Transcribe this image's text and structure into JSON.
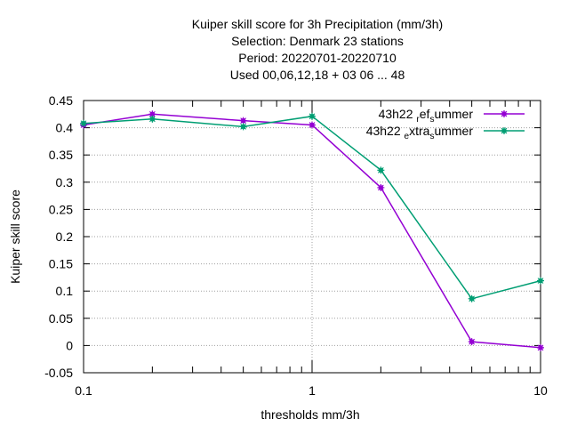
{
  "chart_data": {
    "type": "line",
    "title": [
      "Kuiper skill score  for 3h Precipitation (mm/3h)",
      "Selection: Denmark     23 stations",
      "Period: 20220701-20220710",
      "Used  00,06,12,18  + 03 06 ... 48"
    ],
    "xlabel": "thresholds mm/3h",
    "ylabel": "Kuiper skill score",
    "x_scale": "log",
    "xlim": [
      0.1,
      10
    ],
    "ylim": [
      -0.05,
      0.45
    ],
    "x_ticks": [
      {
        "value": 0.1,
        "label": "0.1"
      },
      {
        "value": 1,
        "label": "1"
      },
      {
        "value": 10,
        "label": "10"
      }
    ],
    "y_ticks": [
      {
        "value": 0.45,
        "label": "0.45"
      },
      {
        "value": 0.4,
        "label": "0.4"
      },
      {
        "value": 0.35,
        "label": "0.35"
      },
      {
        "value": 0.3,
        "label": "0.3"
      },
      {
        "value": 0.25,
        "label": "0.25"
      },
      {
        "value": 0.2,
        "label": "0.2"
      },
      {
        "value": 0.15,
        "label": "0.15"
      },
      {
        "value": 0.1,
        "label": "0.1"
      },
      {
        "value": 0.05,
        "label": "0.05"
      },
      {
        "value": 0,
        "label": "0"
      },
      {
        "value": -0.05,
        "label": "-0.05"
      }
    ],
    "grid": true,
    "legend_position": "top-right",
    "series": [
      {
        "name": "43h22_ref_summer",
        "legend_parts": [
          "43h22 ",
          "r",
          "ef",
          "s",
          "ummer"
        ],
        "color": "#9400d3",
        "x": [
          0.1,
          0.2,
          0.5,
          1,
          2,
          5,
          10
        ],
        "y": [
          0.405,
          0.425,
          0.413,
          0.405,
          0.29,
          0.007,
          -0.004
        ]
      },
      {
        "name": "43h22_extra_summer",
        "legend_parts": [
          "43h22 ",
          "e",
          "xtra",
          "s",
          "ummer"
        ],
        "color": "#009e73",
        "x": [
          0.1,
          0.2,
          0.5,
          1,
          2,
          5,
          10
        ],
        "y": [
          0.408,
          0.416,
          0.402,
          0.421,
          0.322,
          0.086,
          0.119
        ]
      }
    ]
  }
}
